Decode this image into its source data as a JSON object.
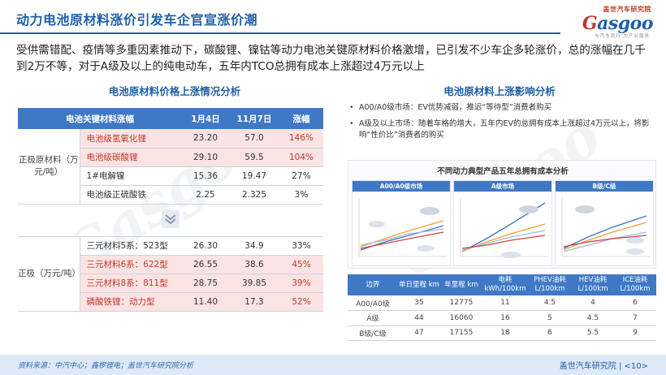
{
  "header": {
    "title": "动力电池原材料涨价引发车企官宣涨价潮",
    "logo_top": "盖世汽车研究院",
    "logo_main_g": "G",
    "logo_main_rest": "asgoo",
    "logo_sub": "与汽车同行 为产业服务"
  },
  "intro": "受供需错配、疫情等多重因素推动下，碳酸锂、镍钴等动力电池关键原材料价格激增，已引发不少车企多轮涨价，总的涨幅在几千到2万不等，对于A级及以上的纯电动车，五年内TCO总拥有成本上涨超过4万元以上",
  "left": {
    "section_title": "电池原材料价格上涨情况分析",
    "headers": [
      "电池关键材料涨幅",
      "1月4日",
      "11月7日",
      "涨幅"
    ],
    "group1_label": "正极原材料（万元/吨）",
    "group1": [
      {
        "material": "电池级氢氧化锂",
        "v1": "23.20",
        "v2": "57.0",
        "pct": "146%",
        "hl": true
      },
      {
        "material": "电池级碳酸锂",
        "v1": "29.10",
        "v2": "59.5",
        "pct": "104%",
        "hl": true
      },
      {
        "material": "1#电解镍",
        "v1": "15.36",
        "v2": "19.47",
        "pct": "27%",
        "hl": false
      },
      {
        "material": "电池级正硫酸铁",
        "v1": "2.25",
        "v2": "2.325",
        "pct": "3%",
        "hl": false
      }
    ],
    "group2_label": "正极（万元/吨）",
    "group2": [
      {
        "material": "三元材料5系：523型",
        "v1": "26.30",
        "v2": "34.9",
        "pct": "33%",
        "hl": false
      },
      {
        "material": "三元材料6系：622型",
        "v1": "26.55",
        "v2": "38.6",
        "pct": "45%",
        "hl": true
      },
      {
        "material": "三元材料8系：811型",
        "v1": "28.75",
        "v2": "39.85",
        "pct": "39%",
        "hl": true
      },
      {
        "material": "磷酸铁锂：动力型",
        "v1": "11.40",
        "v2": "17.3",
        "pct": "52%",
        "hl": true
      }
    ]
  },
  "right": {
    "section_title": "电池原材料上涨影响分析",
    "bullets": [
      "A00/A0级市场：EV优势减弱，推迟“等待型”消费者购买",
      "A级及以上市场：随着车格的增大，五年内EV的总拥有成本上涨超过4万元以上，将影响“性价比”消费者的购买"
    ],
    "chart_title": "不同动力典型产品五年总拥有成本分析",
    "panels": [
      "A00/A0级市场",
      "A级市场",
      "B级/C级"
    ],
    "table_headers": [
      "边界",
      "单日里程 km",
      "年里程 km",
      "电耗 kWh/100km",
      "PHEV油耗 L/100km",
      "HEV油耗 L/100km",
      "ICE油耗 L/100km"
    ],
    "table_rows": [
      [
        "A00/A0级",
        "35",
        "12775",
        "11",
        "4.5",
        "4",
        "6"
      ],
      [
        "A级",
        "44",
        "16060",
        "16",
        "5",
        "4.5",
        "7"
      ],
      [
        "B级/C级",
        "47",
        "17155",
        "18",
        "6",
        "5.5",
        "9"
      ]
    ]
  },
  "footer": {
    "source": "资料来源：中汽中心；鑫椤锂电；盖世汽车研究院分析",
    "page": "盖世汽车研究院 | <10>"
  },
  "colors": {
    "brand_blue": "#1f5fa8",
    "header_blue": "#3f78c4",
    "highlight_red": "#c0392b",
    "highlight_bg": "#fbe3e3"
  }
}
